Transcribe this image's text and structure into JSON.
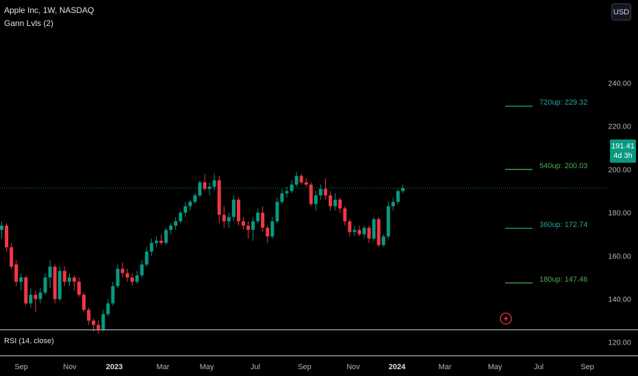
{
  "header": {
    "symbol_line": "Apple Inc, 1W, NASDAQ",
    "indicator_line": "Gann Lvls (2)"
  },
  "currency_button": "USD",
  "price_badge": {
    "price": "191.41",
    "countdown": "4d 3h"
  },
  "rsi_pane": {
    "label": "RSI (14, close)"
  },
  "colors": {
    "up": "#089981",
    "down": "#f23645",
    "gann_teal": "#26a69a",
    "gann_green": "#4caf50",
    "current_price_line": "#089981",
    "background": "#000000"
  },
  "chart_data": {
    "type": "candlestick",
    "y_axis": {
      "ylim": [
        111,
        249
      ],
      "ticks": [
        120,
        140,
        160,
        180,
        200,
        220,
        240
      ],
      "tick_labels": [
        "120.00",
        "140.00",
        "160.00",
        "180.00",
        "200.00",
        "220.00",
        "240.00"
      ]
    },
    "x_axis": {
      "tick_labels": [
        "Sep",
        "Nov",
        "2023",
        "Mar",
        "May",
        "Jul",
        "Sep",
        "Nov",
        "2024",
        "Mar",
        "May",
        "Jul",
        "Sep"
      ]
    },
    "current_price": 191.41,
    "gann_levels": [
      {
        "label": "720up: 229.32",
        "value": 229.32,
        "color": "#26a69a"
      },
      {
        "label": "540up: 200.03",
        "value": 200.03,
        "color": "#4caf50"
      },
      {
        "label": "360up: 172.74",
        "value": 172.74,
        "color": "#26a69a"
      },
      {
        "label": "180up: 147.46",
        "value": 147.46,
        "color": "#4caf50"
      }
    ],
    "candles": [
      [
        172.0,
        176.0,
        168.0,
        174.0
      ],
      [
        174.0,
        175.0,
        162.0,
        164.0
      ],
      [
        164.0,
        166.0,
        154.0,
        155.0
      ],
      [
        156.0,
        158.0,
        146.0,
        148.0
      ],
      [
        148.0,
        152.0,
        144.0,
        150.0
      ],
      [
        150.0,
        151.0,
        137.0,
        138.0
      ],
      [
        138.0,
        145.0,
        136.0,
        142.0
      ],
      [
        142.0,
        144.0,
        134.0,
        140.0
      ],
      [
        140.0,
        145.0,
        138.0,
        143.0
      ],
      [
        143.0,
        152.0,
        142.0,
        150.0
      ],
      [
        150.0,
        158.0,
        145.0,
        155.0
      ],
      [
        155.0,
        156.0,
        138.0,
        140.0
      ],
      [
        140.0,
        155.0,
        139.0,
        153.0
      ],
      [
        153.0,
        155.0,
        146.0,
        148.0
      ],
      [
        148.0,
        152.0,
        146.0,
        150.0
      ],
      [
        150.0,
        151.0,
        144.0,
        148.0
      ],
      [
        148.0,
        150.0,
        141.0,
        142.0
      ],
      [
        142.0,
        143.0,
        134.0,
        135.0
      ],
      [
        135.0,
        136.0,
        128.0,
        130.0
      ],
      [
        130.0,
        131.0,
        125.0,
        128.0
      ],
      [
        128.0,
        130.0,
        124.0,
        126.0
      ],
      [
        126.0,
        135.0,
        125.0,
        133.0
      ],
      [
        133.0,
        140.0,
        132.0,
        138.0
      ],
      [
        138.0,
        148.0,
        137.0,
        146.0
      ],
      [
        146.0,
        156.0,
        145.0,
        154.0
      ],
      [
        154.0,
        157.0,
        150.0,
        152.0
      ],
      [
        152.0,
        154.0,
        148.0,
        150.0
      ],
      [
        150.0,
        152.0,
        146.0,
        148.0
      ],
      [
        148.0,
        153.0,
        147.0,
        151.0
      ],
      [
        151.0,
        158.0,
        150.0,
        156.0
      ],
      [
        156.0,
        164.0,
        155.0,
        162.0
      ],
      [
        162.0,
        168.0,
        160.0,
        166.0
      ],
      [
        166.0,
        169.0,
        164.0,
        167.0
      ],
      [
        167.0,
        170.0,
        165.0,
        166.0
      ],
      [
        166.0,
        173.0,
        165.0,
        172.0
      ],
      [
        172.0,
        175.0,
        170.0,
        174.0
      ],
      [
        174.0,
        178.0,
        172.0,
        176.0
      ],
      [
        176.0,
        181.0,
        175.0,
        180.0
      ],
      [
        180.0,
        185.0,
        178.0,
        183.0
      ],
      [
        183.0,
        186.0,
        181.0,
        185.0
      ],
      [
        185.0,
        189.0,
        184.0,
        188.0
      ],
      [
        188.0,
        195.0,
        187.0,
        194.0
      ],
      [
        194.0,
        198.0,
        190.0,
        191.0
      ],
      [
        191.0,
        194.0,
        188.0,
        192.0
      ],
      [
        192.0,
        198.0,
        190.0,
        195.0
      ],
      [
        195.0,
        197.0,
        175.0,
        179.0
      ],
      [
        179.0,
        183.0,
        173.0,
        176.0
      ],
      [
        176.0,
        180.0,
        173.0,
        178.0
      ],
      [
        178.0,
        188.0,
        176.0,
        186.0
      ],
      [
        186.0,
        187.0,
        174.0,
        176.0
      ],
      [
        176.0,
        178.0,
        172.0,
        174.0
      ],
      [
        174.0,
        176.0,
        168.0,
        172.0
      ],
      [
        172.0,
        178.0,
        167.0,
        176.0
      ],
      [
        176.0,
        182.0,
        175.0,
        180.0
      ],
      [
        180.0,
        183.0,
        171.0,
        173.0
      ],
      [
        173.0,
        174.0,
        166.0,
        169.0
      ],
      [
        169.0,
        178.0,
        168.0,
        176.0
      ],
      [
        176.0,
        187.0,
        175.0,
        185.0
      ],
      [
        185.0,
        191.0,
        184.0,
        189.0
      ],
      [
        189.0,
        192.0,
        187.0,
        190.0
      ],
      [
        190.0,
        195.0,
        189.0,
        193.0
      ],
      [
        193.0,
        199.0,
        192.0,
        197.0
      ],
      [
        197.0,
        198.0,
        193.0,
        194.0
      ],
      [
        194.0,
        196.0,
        192.0,
        193.0
      ],
      [
        193.0,
        194.0,
        183.0,
        184.0
      ],
      [
        184.0,
        190.0,
        181.0,
        188.0
      ],
      [
        188.0,
        193.0,
        186.0,
        191.0
      ],
      [
        191.0,
        196.0,
        186.0,
        188.0
      ],
      [
        188.0,
        190.0,
        181.0,
        183.0
      ],
      [
        183.0,
        189.0,
        181.0,
        186.0
      ],
      [
        186.0,
        187.0,
        180.0,
        182.0
      ],
      [
        182.0,
        183.0,
        174.0,
        176.0
      ],
      [
        176.0,
        177.0,
        169.0,
        171.0
      ],
      [
        171.0,
        174.0,
        169.0,
        172.0
      ],
      [
        172.0,
        174.0,
        169.0,
        170.0
      ],
      [
        170.0,
        174.0,
        168.0,
        173.0
      ],
      [
        173.0,
        174.0,
        166.0,
        168.0
      ],
      [
        168.0,
        178.0,
        167.0,
        177.0
      ],
      [
        177.0,
        178.0,
        164.0,
        165.0
      ],
      [
        165.0,
        170.0,
        164.0,
        169.0
      ],
      [
        169.0,
        185.0,
        168.0,
        183.0
      ],
      [
        183.0,
        187.0,
        181.0,
        185.0
      ],
      [
        185.0,
        191.0,
        184.0,
        190.0
      ],
      [
        190.0,
        193.0,
        189.0,
        191.41
      ]
    ]
  }
}
